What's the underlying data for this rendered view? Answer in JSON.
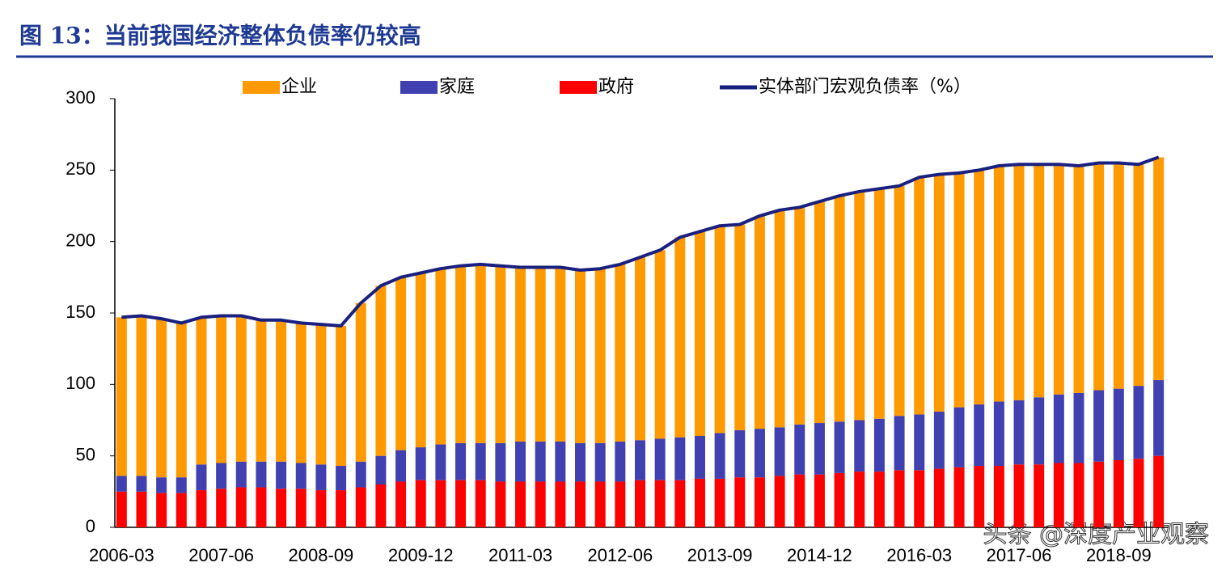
{
  "chart_data": {
    "type": "stacked-bar-line",
    "title": "图 13：当前我国经济整体负债率仍较高",
    "watermark": "头条 @深度产业观察",
    "categories": [
      "2006-03",
      null,
      null,
      null,
      null,
      "2007-06",
      null,
      null,
      null,
      null,
      "2008-09",
      null,
      null,
      null,
      null,
      "2009-12",
      null,
      null,
      null,
      null,
      "2011-03",
      null,
      null,
      null,
      null,
      "2012-06",
      null,
      null,
      null,
      null,
      "2013-09",
      null,
      null,
      null,
      null,
      "2014-12",
      null,
      null,
      null,
      null,
      "2016-03",
      null,
      null,
      null,
      null,
      "2017-06",
      null,
      null,
      null,
      null,
      "2018-09",
      null,
      null
    ],
    "series": [
      {
        "name": "企业",
        "color": "#ff9900",
        "kind": "bar",
        "values": [
          111,
          112,
          111,
          108,
          103,
          103,
          102,
          99,
          99,
          98,
          98,
          98,
          111,
          119,
          121,
          122,
          123,
          124,
          125,
          124,
          122,
          122,
          122,
          121,
          122,
          124,
          128,
          132,
          140,
          143,
          145,
          144,
          149,
          152,
          152,
          155,
          158,
          160,
          161,
          161,
          166,
          166,
          164,
          164,
          165,
          165,
          163,
          161,
          159,
          159,
          158,
          155,
          156
        ]
      },
      {
        "name": "家庭",
        "color": "#4040b0",
        "kind": "bar",
        "values": [
          11,
          11,
          11,
          11,
          18,
          18,
          18,
          18,
          19,
          18,
          18,
          17,
          18,
          20,
          22,
          23,
          25,
          26,
          26,
          27,
          28,
          28,
          28,
          27,
          27,
          28,
          28,
          29,
          30,
          30,
          32,
          33,
          34,
          34,
          35,
          36,
          36,
          36,
          37,
          38,
          39,
          40,
          42,
          43,
          45,
          45,
          47,
          48,
          49,
          50,
          50,
          51,
          53
        ]
      },
      {
        "name": "政府",
        "color": "#ff0000",
        "kind": "bar",
        "values": [
          25,
          25,
          24,
          24,
          26,
          27,
          28,
          28,
          27,
          27,
          26,
          26,
          28,
          30,
          32,
          33,
          33,
          33,
          33,
          32,
          32,
          32,
          32,
          32,
          32,
          32,
          33,
          33,
          33,
          34,
          34,
          35,
          35,
          36,
          37,
          37,
          38,
          39,
          39,
          40,
          40,
          41,
          42,
          43,
          43,
          44,
          44,
          45,
          45,
          46,
          47,
          48,
          50
        ]
      },
      {
        "name": "实体部门宏观负债率（%）",
        "color": "#1a2080",
        "kind": "line",
        "values": [
          147,
          148,
          146,
          143,
          147,
          148,
          148,
          145,
          145,
          143,
          142,
          141,
          157,
          169,
          175,
          178,
          181,
          183,
          184,
          183,
          182,
          182,
          182,
          180,
          181,
          184,
          189,
          194,
          203,
          207,
          211,
          212,
          218,
          222,
          224,
          228,
          232,
          235,
          237,
          239,
          245,
          247,
          248,
          250,
          253,
          254,
          254,
          254,
          253,
          255,
          255,
          254,
          259
        ]
      }
    ],
    "ylim": [
      0,
      300
    ],
    "yticks": [
      0,
      50,
      100,
      150,
      200,
      250,
      300
    ],
    "grid": false
  }
}
